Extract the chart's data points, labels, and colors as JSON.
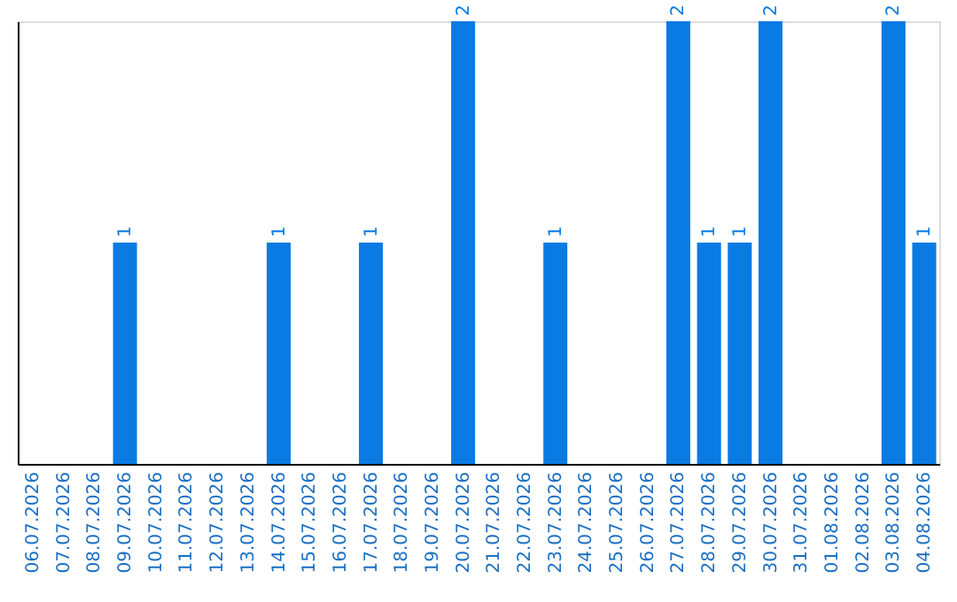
{
  "chart_data": {
    "type": "bar",
    "categories": [
      "06.07.2026",
      "07.07.2026",
      "08.07.2026",
      "09.07.2026",
      "10.07.2026",
      "11.07.2026",
      "12.07.2026",
      "13.07.2026",
      "14.07.2026",
      "15.07.2026",
      "16.07.2026",
      "17.07.2026",
      "18.07.2026",
      "19.07.2026",
      "20.07.2026",
      "21.07.2026",
      "22.07.2026",
      "23.07.2026",
      "24.07.2026",
      "25.07.2026",
      "26.07.2026",
      "27.07.2026",
      "28.07.2026",
      "29.07.2026",
      "30.07.2026",
      "31.07.2026",
      "01.08.2026",
      "02.08.2026",
      "03.08.2026",
      "04.08.2026"
    ],
    "values": [
      0,
      0,
      0,
      1,
      0,
      0,
      0,
      0,
      1,
      0,
      0,
      1,
      0,
      0,
      2,
      0,
      0,
      1,
      0,
      0,
      0,
      2,
      1,
      1,
      2,
      0,
      0,
      0,
      2,
      1
    ],
    "value_labels": [
      null,
      null,
      null,
      "1",
      null,
      null,
      null,
      null,
      "1",
      null,
      null,
      "1",
      null,
      null,
      "2",
      null,
      null,
      "1",
      null,
      null,
      null,
      "2",
      "1",
      "1",
      "2",
      null,
      null,
      null,
      "2",
      "1"
    ],
    "color": "#0a7be2",
    "ylim": [
      0,
      2
    ],
    "tick_labels": "x",
    "grid": false
  }
}
